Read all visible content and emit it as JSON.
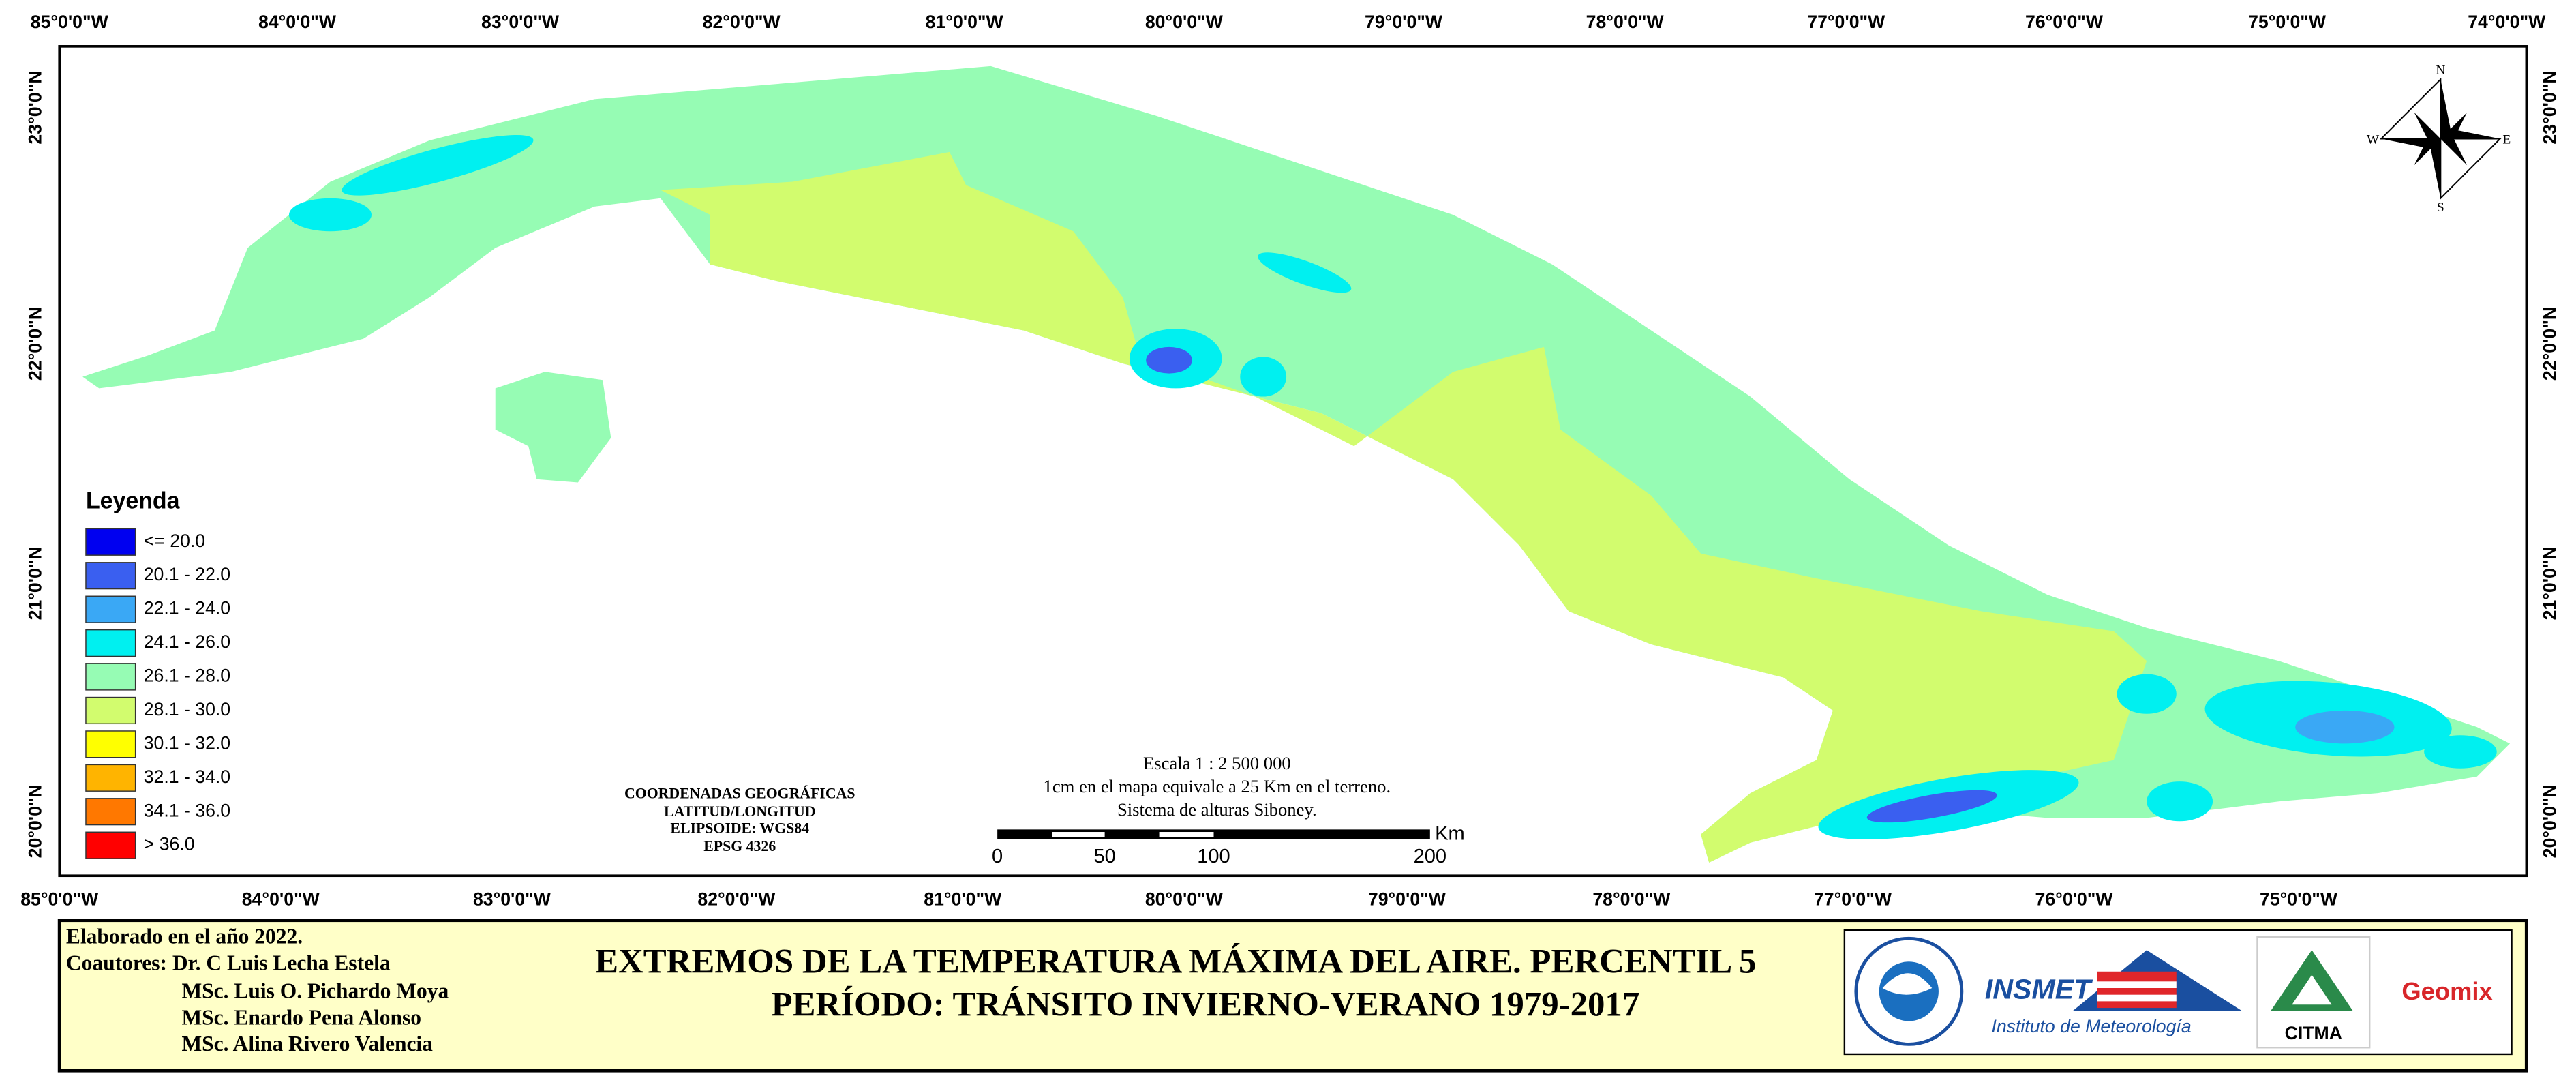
{
  "map": {
    "top_lon_labels": [
      "85°0'0\"W",
      "84°0'0\"W",
      "83°0'0\"W",
      "82°0'0\"W",
      "81°0'0\"W",
      "80°0'0\"W",
      "79°0'0\"W",
      "78°0'0\"W",
      "77°0'0\"W",
      "76°0'0\"W",
      "75°0'0\"W",
      "74°0'0\"W"
    ],
    "bottom_lon_labels": [
      "85°0'0\"W",
      "84°0'0\"W",
      "83°0'0\"W",
      "82°0'0\"W",
      "81°0'0\"W",
      "80°0'0\"W",
      "79°0'0\"W",
      "78°0'0\"W",
      "77°0'0\"W",
      "76°0'0\"W",
      "75°0'0\"W"
    ],
    "left_lat_labels": [
      "23°0'0\"N",
      "22°0'0\"N",
      "21°0'0\"N",
      "20°0'0\"N"
    ],
    "right_lat_labels": [
      "23°0'0\"N",
      "22°0'0\"N",
      "21°0'0\"N",
      "20°0'0\"N"
    ],
    "legend": {
      "title": "Leyenda",
      "items": [
        {
          "label": "<= 20.0",
          "color": "#0000f0"
        },
        {
          "label": "20.1 - 22.0",
          "color": "#3a5ff0"
        },
        {
          "label": "22.1 - 24.0",
          "color": "#3aa8f5"
        },
        {
          "label": "24.1 - 26.0",
          "color": "#00f0f0"
        },
        {
          "label": "26.1 - 28.0",
          "color": "#96fcb4"
        },
        {
          "label": "28.1 - 30.0",
          "color": "#d2fc6e"
        },
        {
          "label": "30.1 - 32.0",
          "color": "#ffff00"
        },
        {
          "label": "32.1 - 34.0",
          "color": "#ffb400"
        },
        {
          "label": "34.1 - 36.0",
          "color": "#ff7800"
        },
        {
          "label": "> 36.0",
          "color": "#ff0000"
        }
      ]
    },
    "coordinates": [
      "COORDENADAS GEOGRÁFICAS",
      "LATITUD/LONGITUD",
      "ELIPSOIDE: WGS84",
      "EPSG 4326"
    ],
    "scale": {
      "lines": [
        "Escala 1 : 2 500 000",
        "1cm en el mapa equivale a 25 Km en el terreno.",
        "Sistema de alturas Siboney."
      ],
      "ticks": [
        "0",
        "50",
        "100",
        "200"
      ],
      "unit": "Km"
    },
    "compass": {
      "n": "N",
      "s": "S",
      "e": "E",
      "w": "W"
    }
  },
  "footer": {
    "credits": [
      "Elaborado en el año 2022.",
      "Coautores: Dr. C Luis Lecha Estela",
      "MSc. Luis O. Pichardo Moya",
      "MSc. Enardo Pena Alonso",
      "MSc. Alina Rivero Valencia"
    ],
    "title": [
      "EXTREMOS DE LA TEMPERATURA MÁXIMA DEL AIRE. PERCENTIL 5",
      "PERÍODO: TRÁNSITO INVIERNO-VERANO 1979-2017"
    ],
    "logos": [
      "INSMET",
      "Instituto de Meteorología",
      "CITMA",
      "Geomix"
    ]
  }
}
